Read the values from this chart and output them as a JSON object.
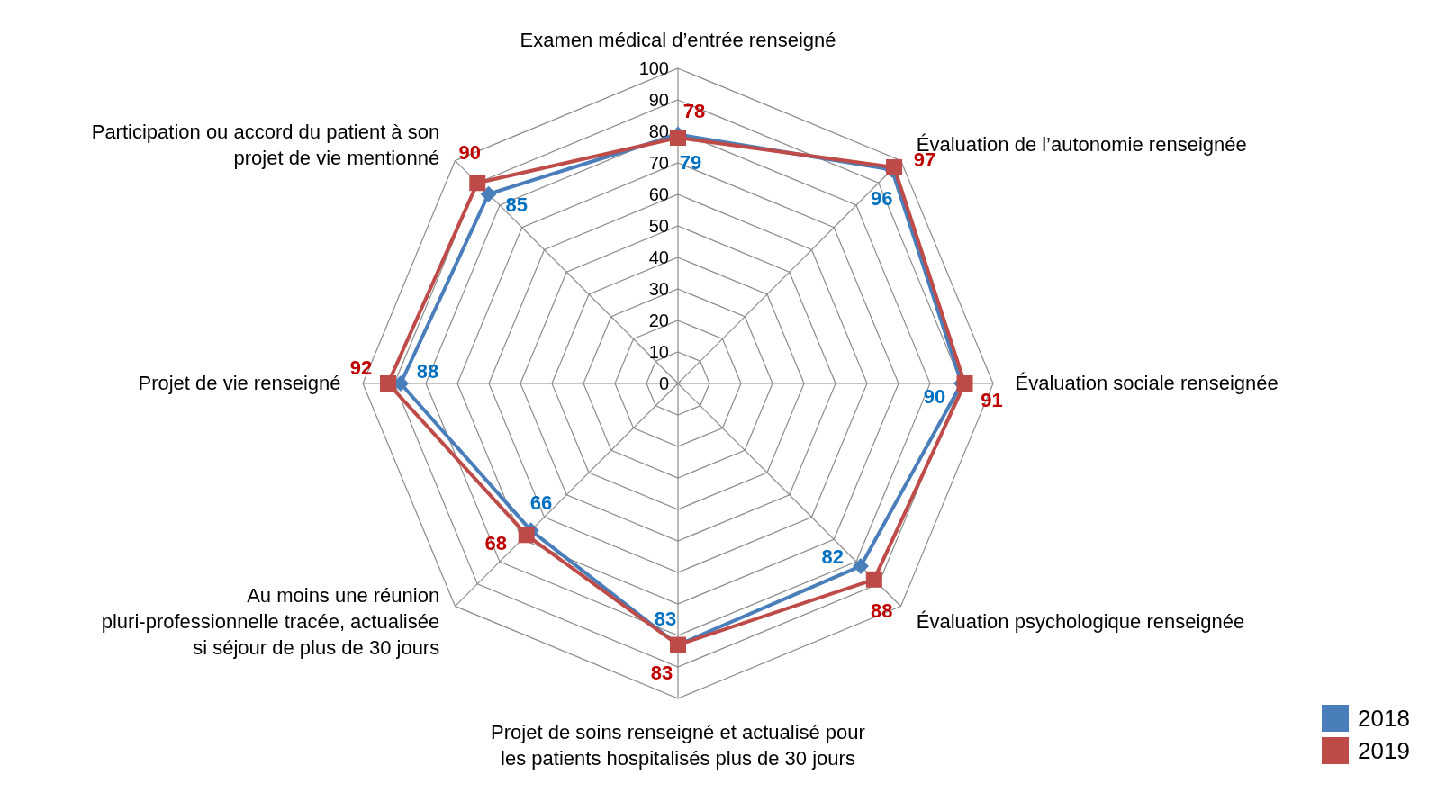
{
  "chart_data": {
    "type": "radar",
    "categories": [
      "Examen médical d’entrée renseigné",
      "Évaluation de l’autonomie renseignée",
      "Évaluation sociale renseignée",
      "Évaluation psychologique renseignée",
      "Projet de soins renseigné et actualisé pour les patients hospitalisés plus de 30 jours",
      "Au moins une réunion pluri-professionnelle tracée, actualisée si séjour de plus de 30 jours",
      "Projet de vie renseigné",
      "Participation ou accord du patient à son projet de vie mentionné"
    ],
    "series": [
      {
        "name": "2018",
        "color": "#4a7ebb",
        "values": [
          79,
          96,
          90,
          82,
          83,
          66,
          88,
          85
        ],
        "marker": "diamond"
      },
      {
        "name": "2019",
        "color": "#be4b48",
        "values": [
          78,
          97,
          91,
          88,
          83,
          68,
          92,
          90
        ],
        "marker": "square"
      }
    ],
    "ylim": [
      0,
      100
    ],
    "yticks": [
      0,
      10,
      20,
      30,
      40,
      50,
      60,
      70,
      80,
      90,
      100
    ],
    "grid": true,
    "legend": "bottom right",
    "data_labels": true
  }
}
